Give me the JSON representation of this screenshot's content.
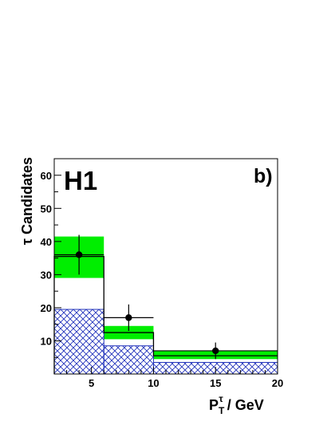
{
  "chart_data": {
    "type": "bar",
    "experiment_label": "H1",
    "panel_label": "b)",
    "ylabel": "τ Candidates",
    "xlabel": {
      "main": "P",
      "sub": "T",
      "sup": "τ",
      "unit": " / GeV"
    },
    "xlim": [
      2,
      20
    ],
    "ylim": [
      0,
      65
    ],
    "x_ticks": [
      5,
      10,
      15,
      20
    ],
    "y_ticks": [
      10,
      20,
      30,
      40,
      50,
      60
    ],
    "bins": [
      {
        "low": 2,
        "high": 6,
        "prediction": 35.5,
        "band_low": 29,
        "band_high": 41.5,
        "background": 19.5
      },
      {
        "low": 6,
        "high": 10,
        "prediction": 12.5,
        "band_low": 10.5,
        "band_high": 14.5,
        "background": 8.5
      },
      {
        "low": 10,
        "high": 20,
        "prediction": 5.5,
        "band_low": 4.5,
        "band_high": 7,
        "background": 3.5
      }
    ],
    "data_points": [
      {
        "x": 4,
        "y": 36,
        "xerr": [
          2,
          2
        ],
        "yerr": [
          6,
          6
        ]
      },
      {
        "x": 8,
        "y": 17,
        "xerr": [
          2,
          2
        ],
        "yerr": [
          4,
          4
        ]
      },
      {
        "x": 15,
        "y": 7,
        "xerr": [
          5,
          5
        ],
        "yerr": [
          2.5,
          2.5
        ]
      }
    ],
    "colors": {
      "band": "#00ee00",
      "background_hatch": "#2233bb",
      "prediction": "#000000",
      "data": "#000000"
    },
    "grid": false,
    "legend": "none"
  }
}
